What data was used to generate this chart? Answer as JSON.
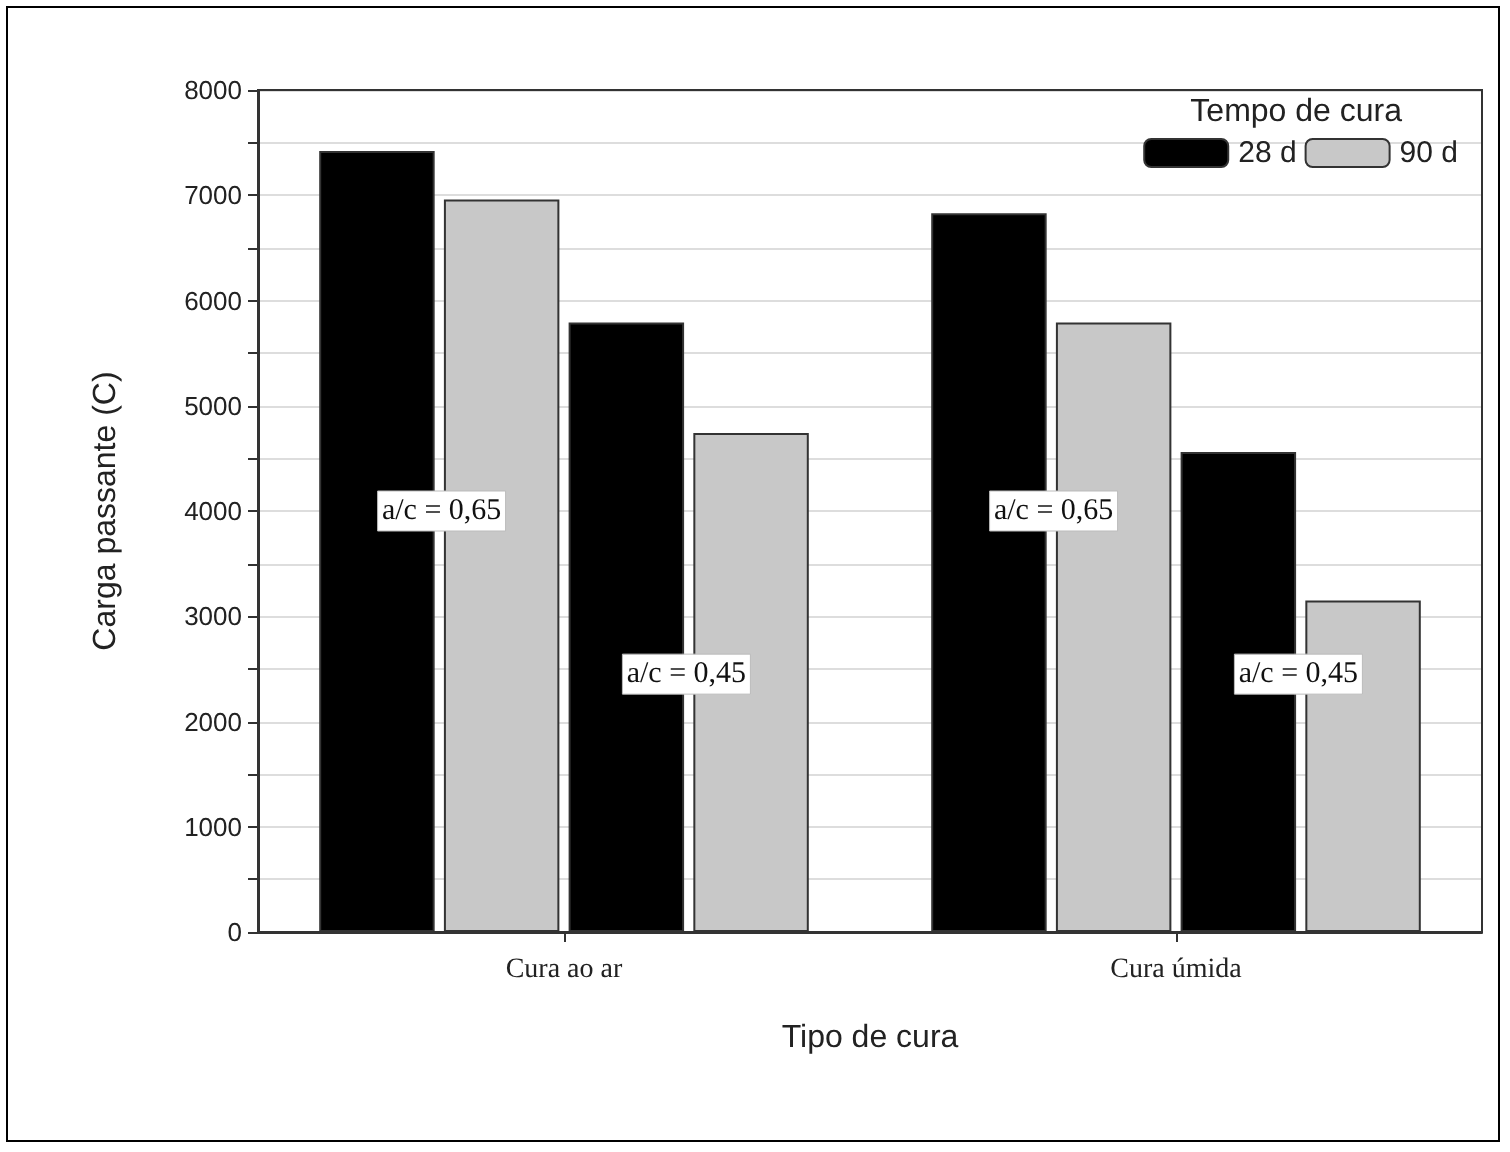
{
  "chart_data": {
    "type": "bar",
    "xlabel": "Tipo de cura",
    "ylabel": "Carga passante (C)",
    "legend_title": "Tempo de cura",
    "categories": [
      "Cura ao ar",
      "Cura úmida"
    ],
    "series": [
      {
        "name": "28 d",
        "color": "#000000",
        "values": [
          7420,
          6830
        ]
      },
      {
        "name": "90 d",
        "color": "#c8c8c8",
        "values": [
          6960,
          5790
        ]
      },
      {
        "color": "#000000",
        "values": [
          5790,
          4560
        ]
      },
      {
        "color": "#c8c8c8",
        "values": [
          4740,
          3150
        ]
      }
    ],
    "ylim": [
      0,
      8000
    ],
    "yticks": [
      0,
      {
        "value": 500,
        "label": null
      },
      1000,
      {
        "value": 1500,
        "label": null
      },
      2000,
      {
        "value": 2500,
        "label": null
      },
      3000,
      {
        "value": 3500,
        "label": null
      },
      4000,
      {
        "value": 4500,
        "label": null
      },
      5000,
      {
        "value": 5500,
        "label": null
      },
      6000,
      {
        "value": 6500,
        "label": null
      },
      7000,
      {
        "value": 7500,
        "label": null
      },
      8000
    ],
    "grid": "y",
    "legend": "top right",
    "annotations": [
      {
        "text": "a/c = 0,65",
        "x": "Cura ao ar",
        "y": 4000
      },
      {
        "text": "a/c = 0,45",
        "x": "Cura ao ar",
        "y": 2450
      },
      {
        "text": "a/c = 0,65",
        "x": "Cura úmida",
        "y": 4000
      },
      {
        "text": "a/c = 0,45",
        "x": "Cura úmida",
        "y": 2450
      }
    ]
  }
}
